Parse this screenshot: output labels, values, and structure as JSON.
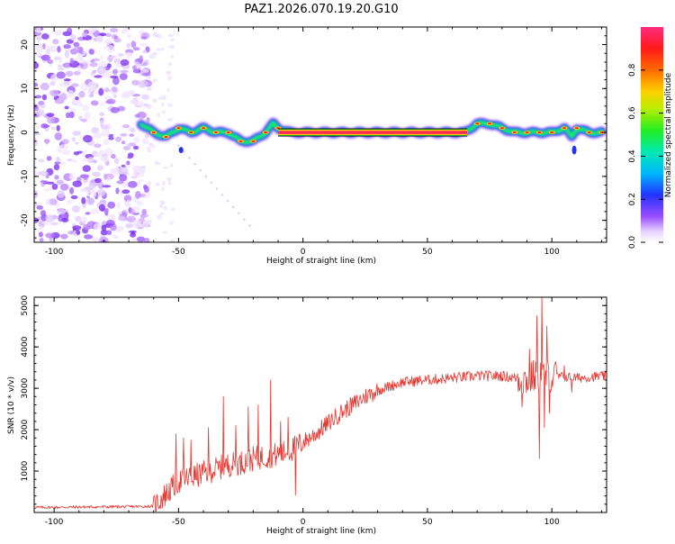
{
  "title": "PAZ1.2026.070.19.20.G10",
  "colorbar": {
    "label": "Normalized spectral amplitude",
    "ticks": [
      "0.0",
      "0.2",
      "0.4",
      "0.6",
      "0.8"
    ],
    "tick_values": [
      0.0,
      0.2,
      0.4,
      0.6,
      0.8
    ]
  },
  "chart_data": [
    {
      "type": "heatmap",
      "name": "spectrogram",
      "xlabel": "Height of straight line (km)",
      "ylabel": "Frequency (Hz)",
      "xlim": [
        -108,
        122
      ],
      "ylim": [
        -25,
        24
      ],
      "xticks": [
        -100,
        -50,
        0,
        50,
        100
      ],
      "xtick_labels": [
        "-100",
        "-50",
        "0",
        "50",
        "100"
      ],
      "yticks": [
        -20,
        -10,
        0,
        10,
        20
      ],
      "ytick_labels": [
        "-20",
        "-10",
        "0",
        "10",
        "20"
      ],
      "color_scale": "normalized spectral amplitude 0-1 (rainbow)",
      "noise_region_km": [
        -108,
        -62
      ],
      "ridge": {
        "x": [
          -65,
          -60,
          -55,
          -50,
          -45,
          -40,
          -35,
          -30,
          -25,
          -20,
          -15,
          -12,
          -10,
          -5,
          0,
          10,
          20,
          30,
          40,
          50,
          60,
          65,
          70,
          75,
          80,
          85,
          90,
          95,
          100,
          105,
          108,
          110,
          115,
          120
        ],
        "freq": [
          2,
          0,
          -1,
          1,
          0,
          1,
          0,
          0,
          -2,
          -2,
          0,
          2,
          1,
          0,
          0,
          0,
          0,
          0,
          0,
          0,
          0,
          0,
          2,
          2,
          1,
          0,
          0,
          0,
          0,
          1,
          -1,
          1,
          0,
          0
        ]
      }
    },
    {
      "type": "line",
      "name": "snr",
      "xlabel": "Height of straight line (km)",
      "ylabel": "SNR (10 * v/v)",
      "xlim": [
        -108,
        122
      ],
      "ylim": [
        0,
        5200
      ],
      "xticks": [
        -100,
        -50,
        0,
        50,
        100
      ],
      "xtick_labels": [
        "-100",
        "-50",
        "0",
        "50",
        "100"
      ],
      "yticks": [
        1000,
        2000,
        3000,
        4000,
        5000
      ],
      "ytick_labels": [
        "1000",
        "2000",
        "3000",
        "4000",
        "5000"
      ],
      "color": "#e8352f",
      "envelope": {
        "x": [
          -108,
          -90,
          -70,
          -60,
          -55,
          -50,
          -45,
          -40,
          -35,
          -30,
          -25,
          -20,
          -15,
          -10,
          -5,
          0,
          5,
          10,
          15,
          20,
          25,
          30,
          35,
          40,
          50,
          60,
          70,
          80,
          90,
          95,
          100,
          110,
          122
        ],
        "y": [
          120,
          130,
          140,
          150,
          450,
          750,
          850,
          950,
          1050,
          1150,
          1200,
          1300,
          1350,
          1400,
          1500,
          1700,
          1900,
          2150,
          2400,
          2600,
          2800,
          2950,
          3050,
          3150,
          3200,
          3250,
          3300,
          3300,
          3200,
          3350,
          3300,
          3250,
          3300
        ]
      },
      "spikes": [
        {
          "x": -51,
          "y": 1900
        },
        {
          "x": -48,
          "y": 1800
        },
        {
          "x": -45,
          "y": 1750
        },
        {
          "x": -38,
          "y": 2050
        },
        {
          "x": -32,
          "y": 2800
        },
        {
          "x": -27,
          "y": 2100
        },
        {
          "x": -22,
          "y": 2550
        },
        {
          "x": -18,
          "y": 2600
        },
        {
          "x": -13,
          "y": 3200
        },
        {
          "x": -9,
          "y": 2200
        },
        {
          "x": -6,
          "y": 2300
        },
        {
          "x": -3,
          "y": 420
        },
        {
          "x": 88,
          "y": 2550
        },
        {
          "x": 91,
          "y": 3950
        },
        {
          "x": 94,
          "y": 4750
        },
        {
          "x": 95,
          "y": 1300
        },
        {
          "x": 96,
          "y": 5250
        },
        {
          "x": 97,
          "y": 2050
        },
        {
          "x": 98,
          "y": 4500
        },
        {
          "x": 99,
          "y": 2400
        },
        {
          "x": 101,
          "y": 3550
        },
        {
          "x": 105,
          "y": 3550
        },
        {
          "x": 108,
          "y": 2900
        }
      ]
    }
  ]
}
